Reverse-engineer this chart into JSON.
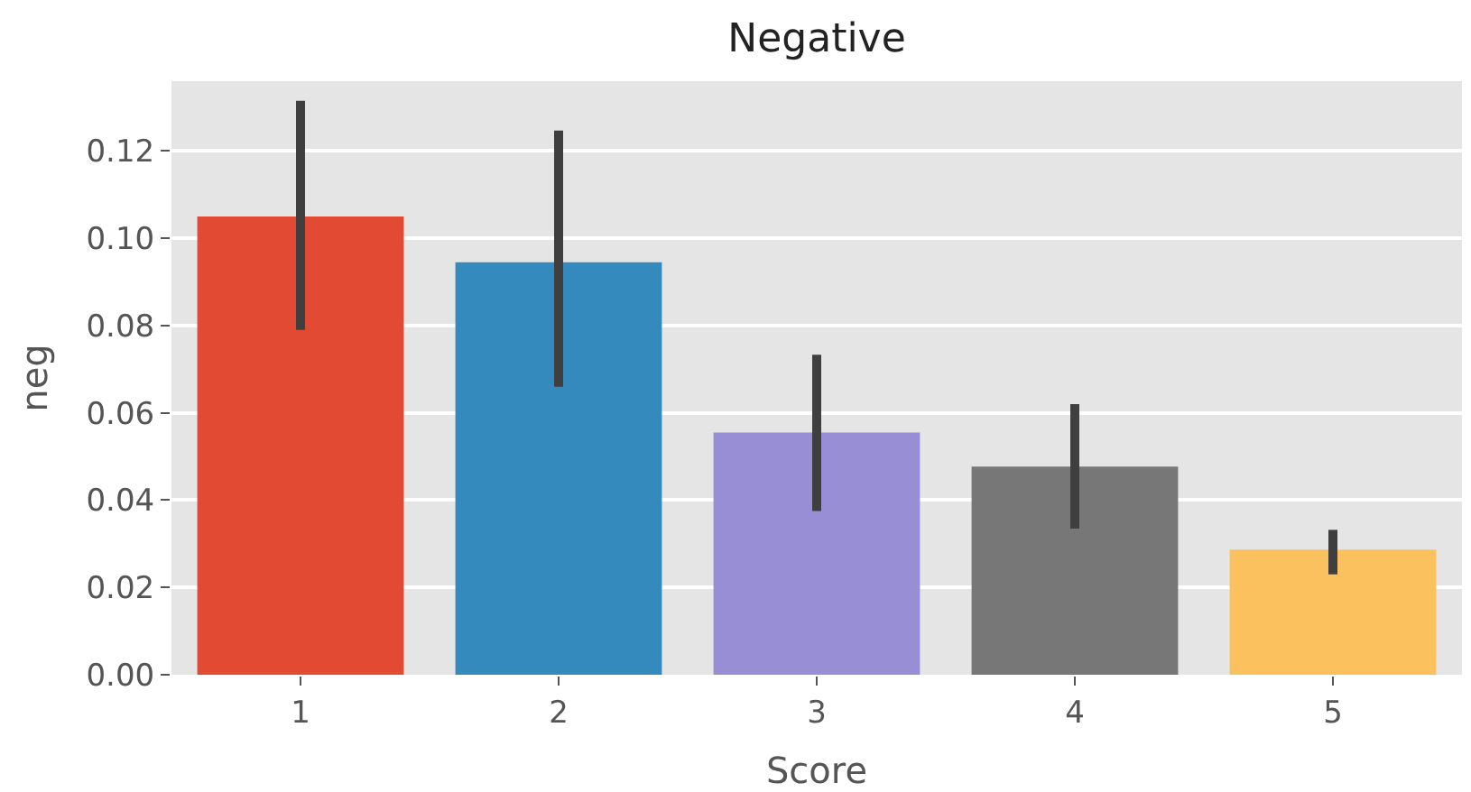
{
  "chart_data": {
    "type": "bar",
    "title": "Negative",
    "xlabel": "Score",
    "ylabel": "neg",
    "categories": [
      "1",
      "2",
      "3",
      "4",
      "5"
    ],
    "values": [
      0.105,
      0.0945,
      0.0555,
      0.0477,
      0.0287
    ],
    "colors": [
      "#e24a33",
      "#348abd",
      "#988ed5",
      "#777777",
      "#fbc15e"
    ],
    "errors": [
      [
        0.079,
        0.1315
      ],
      [
        0.066,
        0.1247
      ],
      [
        0.0375,
        0.0733
      ],
      [
        0.0335,
        0.062
      ],
      [
        0.023,
        0.0332
      ]
    ],
    "ylim": [
      0,
      0.136
    ],
    "yticks": [
      {
        "value": 0,
        "label": "0.00"
      },
      {
        "value": 0.02,
        "label": "0.02"
      },
      {
        "value": 0.04,
        "label": "0.04"
      },
      {
        "value": 0.06,
        "label": "0.06"
      },
      {
        "value": 0.08,
        "label": "0.08"
      },
      {
        "value": 0.1,
        "label": "0.10"
      },
      {
        "value": 0.12,
        "label": "0.12"
      }
    ],
    "grid": "y"
  }
}
